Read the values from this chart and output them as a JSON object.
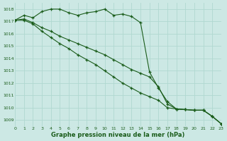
{
  "bg_color": "#cce8e4",
  "grid_color": "#b0d8d0",
  "line_color": "#1a5c1a",
  "xlabel": "Graphe pression niveau de la mer (hPa)",
  "ylim": [
    1008.5,
    1018.5
  ],
  "xlim": [
    0,
    23
  ],
  "yticks": [
    1009,
    1010,
    1011,
    1012,
    1013,
    1014,
    1015,
    1016,
    1017,
    1018
  ],
  "xticks": [
    0,
    1,
    2,
    3,
    4,
    5,
    6,
    7,
    8,
    9,
    10,
    11,
    12,
    13,
    14,
    15,
    16,
    17,
    18,
    19,
    20,
    21,
    22,
    23
  ],
  "series1": [
    1017.1,
    1017.5,
    1017.3,
    1017.8,
    1018.0,
    1018.0,
    1017.7,
    1017.5,
    1017.7,
    1017.8,
    1018.0,
    1017.5,
    1017.6,
    1017.4,
    1016.9,
    1012.9,
    1011.6,
    1010.5,
    1009.9,
    1009.85,
    1009.8,
    1009.8,
    1009.3,
    1008.7
  ],
  "series2": [
    1017.1,
    1017.2,
    1016.9,
    1016.5,
    1016.2,
    1015.8,
    1015.5,
    1015.2,
    1014.9,
    1014.6,
    1014.3,
    1013.9,
    1013.5,
    1013.1,
    1012.8,
    1012.5,
    1011.7,
    1010.3,
    1009.9,
    1009.85,
    1009.8,
    1009.8,
    1009.3,
    1008.7
  ],
  "series3": [
    1017.1,
    1017.1,
    1016.8,
    1016.2,
    1015.7,
    1015.2,
    1014.8,
    1014.3,
    1013.9,
    1013.5,
    1013.0,
    1012.5,
    1012.0,
    1011.6,
    1011.2,
    1010.9,
    1010.6,
    1010.0,
    1009.9,
    1009.85,
    1009.8,
    1009.8,
    1009.3,
    1008.7
  ]
}
